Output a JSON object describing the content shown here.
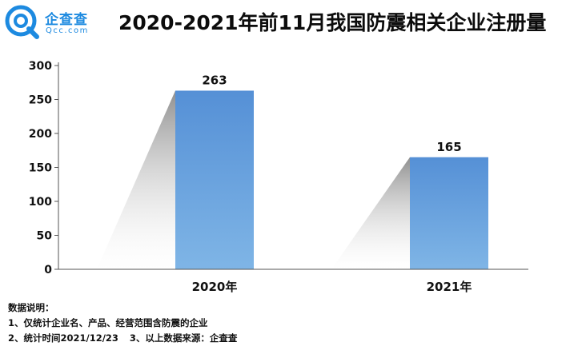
{
  "logo": {
    "name": "企查查",
    "domain": "Qcc.com",
    "icon": "qcc-logo-icon",
    "color": "#1d8ae0"
  },
  "title": "2020-2021年前11月我国防震相关企业注册量",
  "chart_data": {
    "type": "bar",
    "title": "2020-2021年前11月我国防震相关企业注册量",
    "categories": [
      "2020年",
      "2021年"
    ],
    "values": [
      263,
      165
    ],
    "ylim": [
      0,
      300
    ],
    "yticks": [
      0,
      50,
      100,
      150,
      200,
      250,
      300
    ],
    "xlabel": "",
    "ylabel": "",
    "grid": false,
    "legend": "none",
    "bar_color_top": "#5590d6",
    "bar_color_bottom": "#7fb5e6",
    "data_labels": true
  },
  "notes": {
    "header": "数据说明：",
    "line1": "1、仅统计企业名、产品、经营范围含防震的企业",
    "line2a": "2、统计时间2021/12/23",
    "line2b": "3、以上数据来源：企查查"
  }
}
